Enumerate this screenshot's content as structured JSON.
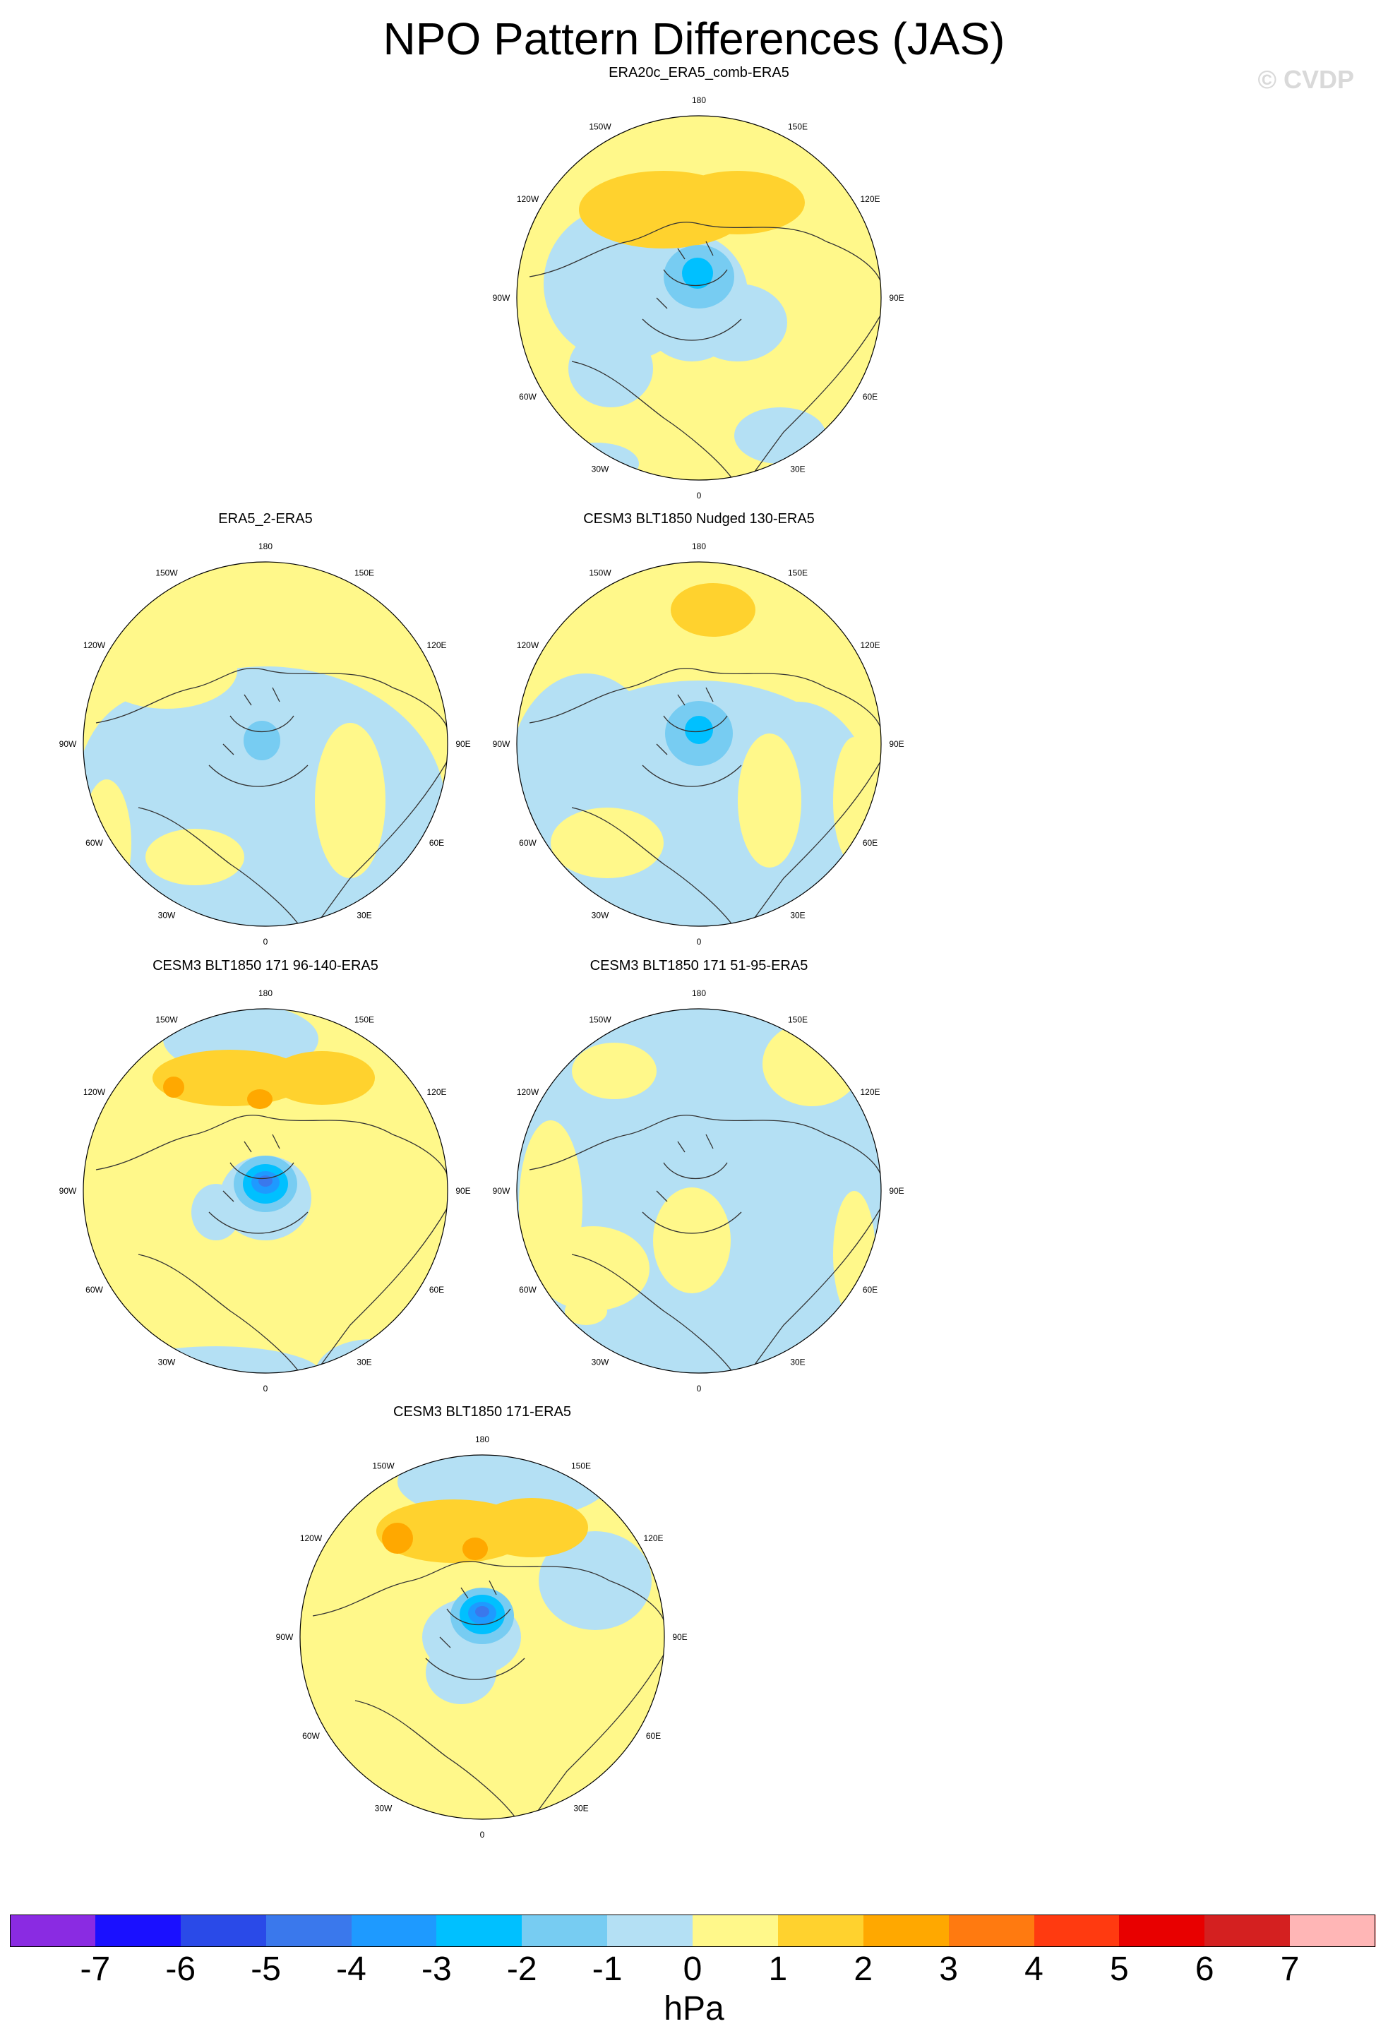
{
  "header": {
    "title": "NPO Pattern Differences (JAS)",
    "credit": "© CVDP"
  },
  "map": {
    "projection": "north-polar-stereographic",
    "lon_labels": [
      "180",
      "150E",
      "120E",
      "90E",
      "60E",
      "30E",
      "0",
      "30W",
      "60W",
      "90W",
      "120W",
      "150W"
    ],
    "panels": [
      {
        "title": "ERA20c_ERA5_comb-ERA5",
        "id": "p1"
      },
      {
        "title": "ERA5_2-ERA5",
        "id": "p2"
      },
      {
        "title": "CESM3 BLT1850 Nudged 130-ERA5",
        "id": "p3"
      },
      {
        "title": "CESM3 BLT1850 171 96-140-ERA5",
        "id": "p4"
      },
      {
        "title": "CESM3 BLT1850 171 51-95-ERA5",
        "id": "p5"
      },
      {
        "title": "CESM3 BLT1850 171-ERA5",
        "id": "p6"
      }
    ]
  },
  "colorbar": {
    "unit": "hPa",
    "ticks": [
      "-7",
      "-6",
      "-5",
      "-4",
      "-3",
      "-2",
      "-1",
      "0",
      "1",
      "2",
      "3",
      "4",
      "5",
      "6",
      "7"
    ],
    "colors": [
      "#8a2be2",
      "#1a10ff",
      "#2a4ae8",
      "#3a78ec",
      "#1e9aff",
      "#00c0ff",
      "#77ccf2",
      "#b4e0f4",
      "#fff88a",
      "#ffd22e",
      "#ffa800",
      "#ff7a10",
      "#ff3a10",
      "#e80000",
      "#d42020",
      "#ffb6b6"
    ]
  }
}
